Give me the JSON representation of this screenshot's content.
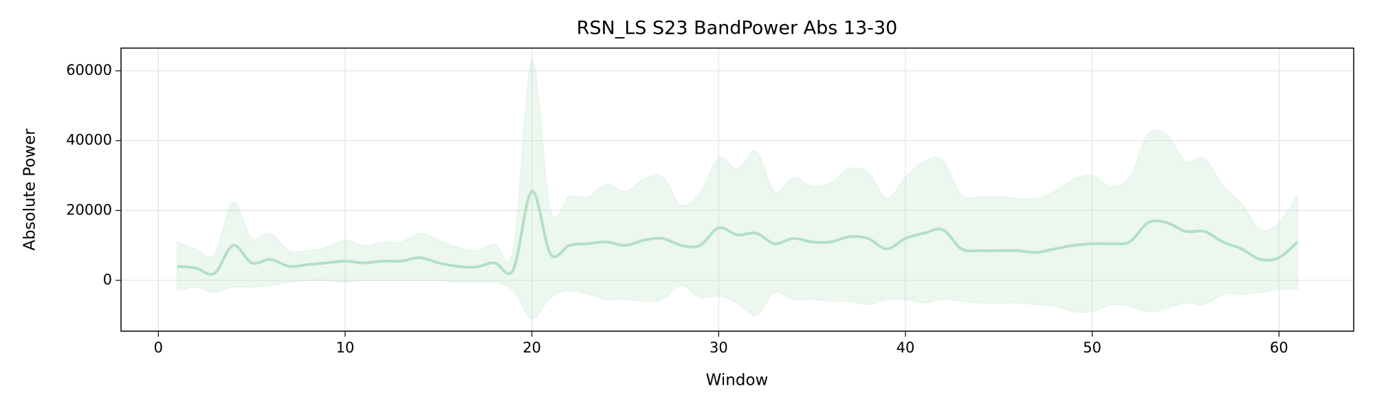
{
  "chart_data": {
    "type": "line",
    "title": "RSN_LS S23 BandPower Abs 13-30",
    "xlabel": "Window",
    "ylabel": "Absolute Power",
    "x": [
      1,
      2,
      3,
      4,
      5,
      6,
      7,
      8,
      9,
      10,
      11,
      12,
      13,
      14,
      15,
      16,
      17,
      18,
      19,
      20,
      21,
      22,
      23,
      24,
      25,
      26,
      27,
      28,
      29,
      30,
      31,
      32,
      33,
      34,
      35,
      36,
      37,
      38,
      39,
      40,
      41,
      42,
      43,
      44,
      45,
      46,
      47,
      48,
      49,
      50,
      51,
      52,
      53,
      54,
      55,
      56,
      57,
      58,
      59,
      60,
      61
    ],
    "series": [
      {
        "color": "#b3e0c5",
        "band_color": "#b3e0c5",
        "values": [
          4000,
          3500,
          2000,
          10000,
          5000,
          6000,
          4000,
          4500,
          5000,
          5500,
          5000,
          5500,
          5500,
          6500,
          5000,
          4000,
          3800,
          5000,
          3000,
          25500,
          7500,
          10000,
          10500,
          11000,
          10000,
          11500,
          12000,
          10000,
          10000,
          15000,
          13000,
          13500,
          10500,
          12000,
          11000,
          11000,
          12500,
          12000,
          9000,
          12000,
          13500,
          14500,
          9000,
          8500,
          8500,
          8500,
          8000,
          9000,
          10000,
          10500,
          10500,
          11000,
          16500,
          16500,
          14000,
          14000,
          11000,
          9000,
          6000,
          6500,
          11000
        ],
        "upper": [
          11000,
          9000,
          7500,
          22500,
          12000,
          13500,
          8500,
          8500,
          9500,
          11500,
          10000,
          11000,
          11000,
          13500,
          11500,
          9500,
          8500,
          10500,
          9000,
          63000,
          20000,
          24000,
          24000,
          27500,
          25500,
          29000,
          29500,
          21500,
          25000,
          35000,
          32000,
          37000,
          25500,
          29500,
          27000,
          28000,
          32000,
          31000,
          23500,
          29500,
          34000,
          34500,
          24500,
          24000,
          24000,
          23500,
          23500,
          25500,
          29000,
          30000,
          27000,
          29500,
          42000,
          41500,
          34000,
          35000,
          27000,
          22000,
          14500,
          16500,
          24500
        ],
        "lower": [
          -3000,
          -2000,
          -3500,
          -2000,
          -2000,
          -1500,
          -500,
          0,
          0,
          -500,
          0,
          0,
          0,
          0,
          0,
          -500,
          -500,
          -500,
          -3000,
          -11000,
          -5000,
          -3000,
          -4000,
          -5500,
          -5500,
          -6000,
          -5500,
          -1500,
          -5000,
          -4500,
          -6500,
          -10000,
          -3500,
          -5500,
          -5500,
          -6000,
          -6000,
          -7000,
          -5500,
          -5500,
          -6500,
          -5500,
          -6000,
          -6500,
          -6500,
          -6500,
          -7000,
          -7500,
          -9000,
          -9000,
          -7000,
          -7500,
          -9000,
          -8000,
          -6500,
          -7000,
          -4000,
          -4000,
          -3500,
          -2500,
          -2500
        ]
      }
    ],
    "xlim": [
      -2,
      64
    ],
    "ylim": [
      -14560,
      66500
    ],
    "xticks": [
      0,
      10,
      20,
      30,
      40,
      50,
      60
    ],
    "yticks": [
      0,
      20000,
      40000,
      60000
    ],
    "grid": true
  }
}
